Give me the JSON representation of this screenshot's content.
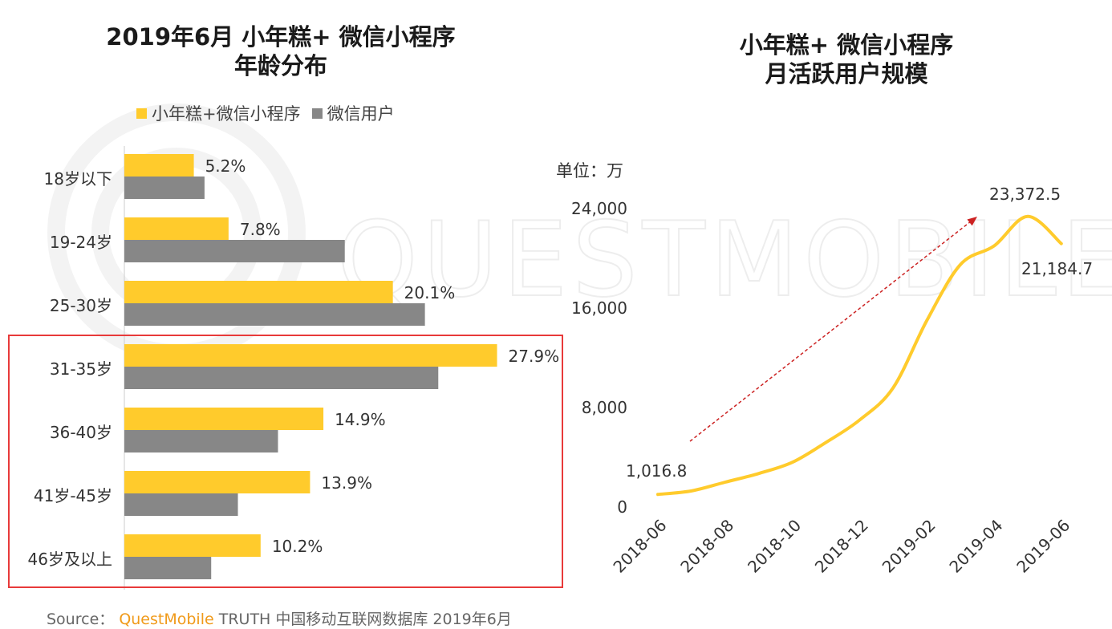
{
  "left_title_line1": "2019年6月 小年糕+ 微信小程序",
  "left_title_line2": "年龄分布",
  "right_title_line1": "小年糕+ 微信小程序",
  "right_title_line2": "月活跃用户规模",
  "unit_label": "单位：万",
  "watermark": "QUESTMOBILE",
  "source": {
    "prefix": "Source：",
    "brand": "QuestMobile",
    "rest": "TRUTH 中国移动互联网数据库 2019年6月"
  },
  "colors": {
    "yellow": "#FFCB2C",
    "gray": "#878787",
    "line": "#FFCB2C",
    "arrow": "#CC2222",
    "highlight": "#E83A3A"
  },
  "chart_data": [
    {
      "type": "bar",
      "orientation": "horizontal",
      "title": "2019年6月 小年糕+ 微信小程序 年龄分布",
      "categories": [
        "18岁以下",
        "19-24岁",
        "25-30岁",
        "31-35岁",
        "36-40岁",
        "41岁-45岁",
        "46岁及以上"
      ],
      "series": [
        {
          "name": "小年糕+微信小程序",
          "values": [
            5.2,
            7.8,
            20.1,
            27.9,
            14.9,
            13.9,
            10.2
          ],
          "labels": [
            "5.2%",
            "7.8%",
            "20.1%",
            "27.9%",
            "14.9%",
            "13.9%",
            "10.2%"
          ]
        },
        {
          "name": "微信用户",
          "values": [
            6.0,
            16.5,
            22.5,
            23.5,
            11.5,
            8.5,
            6.5
          ]
        }
      ],
      "xlim": [
        0,
        30
      ],
      "highlighted_categories": [
        "31-35岁",
        "36-40岁",
        "41岁-45岁",
        "46岁及以上"
      ]
    },
    {
      "type": "line",
      "title": "小年糕+ 微信小程序 月活跃用户规模",
      "unit": "万",
      "x": [
        "2018-06",
        "2018-07",
        "2018-08",
        "2018-09",
        "2018-10",
        "2018-11",
        "2018-12",
        "2019-01",
        "2019-02",
        "2019-03",
        "2019-04",
        "2019-05",
        "2019-06"
      ],
      "x_tick_labels": [
        "2018-06",
        "2018-08",
        "2018-10",
        "2018-12",
        "2019-02",
        "2019-04",
        "2019-06"
      ],
      "values": [
        1016.8,
        1300,
        2000,
        2700,
        3600,
        5200,
        7000,
        9600,
        15000,
        19500,
        21000,
        23372.5,
        21184.7
      ],
      "y_ticks": [
        0,
        8000,
        16000,
        24000
      ],
      "y_tick_labels": [
        "0",
        "8,000",
        "16,000",
        "24,000"
      ],
      "ylim": [
        0,
        24000
      ],
      "annotations": [
        "1,016.8",
        "23,372.5",
        "21,184.7"
      ]
    }
  ]
}
